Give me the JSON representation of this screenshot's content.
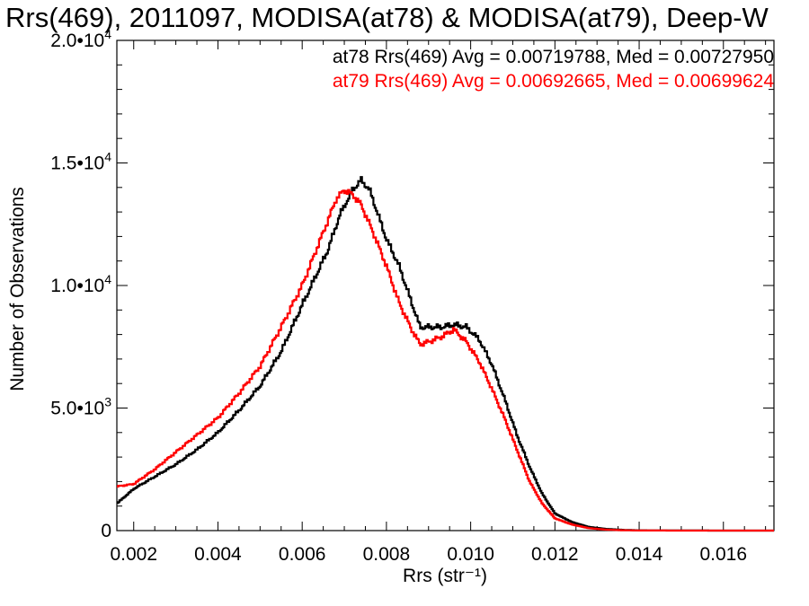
{
  "chart_data": {
    "type": "line",
    "title": "Rrs(469), 2011097, MODISA(at78) & MODISA(at79), Deep-W",
    "xlabel": "Rrs (str⁻¹)",
    "ylabel": "Number of Observations",
    "xlim": [
      0.0016,
      0.0172
    ],
    "ylim": [
      0,
      20000
    ],
    "x_ticks": [
      0.002,
      0.004,
      0.006,
      0.008,
      0.01,
      0.012,
      0.014,
      0.016
    ],
    "x_tick_labels": [
      "0.002",
      "0.004",
      "0.006",
      "0.008",
      "0.010",
      "0.012",
      "0.014",
      "0.016"
    ],
    "y_ticks": [
      0,
      5000,
      10000,
      15000,
      20000
    ],
    "y_tick_labels": [
      {
        "mantissa": "0",
        "exponent": ""
      },
      {
        "mantissa": "5.0•10",
        "exponent": "3"
      },
      {
        "mantissa": "1.0•10",
        "exponent": "4"
      },
      {
        "mantissa": "1.5•10",
        "exponent": "4"
      },
      {
        "mantissa": "2.0•10",
        "exponent": "4"
      }
    ],
    "grid": false,
    "legend_position": "top-right",
    "annotations": [
      {
        "text": "at78 Rrs(469) Avg = 0.00719788, Med = 0.00727950",
        "color": "#000000"
      },
      {
        "text": "at79 Rrs(469) Avg = 0.00692665, Med = 0.00699624",
        "color": "#ff0000"
      }
    ],
    "series": [
      {
        "color": "#000000",
        "x": [
          0.0016,
          0.002,
          0.0025,
          0.003,
          0.0035,
          0.004,
          0.0045,
          0.005,
          0.0055,
          0.006,
          0.0063,
          0.0066,
          0.0069,
          0.0072,
          0.0074,
          0.0076,
          0.0078,
          0.008,
          0.0083,
          0.0086,
          0.0088,
          0.009,
          0.0093,
          0.0096,
          0.0099,
          0.0102,
          0.0105,
          0.0108,
          0.0111,
          0.0114,
          0.0117,
          0.012,
          0.0124,
          0.0128,
          0.0132,
          0.0136,
          0.014,
          0.015,
          0.016,
          0.0172
        ],
        "y": [
          1100,
          1700,
          2200,
          2700,
          3300,
          4000,
          4900,
          5900,
          7300,
          9200,
          10300,
          11400,
          12900,
          13900,
          14300,
          13900,
          12900,
          11900,
          10800,
          9300,
          8300,
          8300,
          8300,
          8400,
          8300,
          7800,
          6800,
          5400,
          3900,
          2600,
          1500,
          700,
          350,
          150,
          70,
          30,
          10,
          5,
          0,
          0
        ]
      },
      {
        "color": "#ff0000",
        "x": [
          0.0016,
          0.002,
          0.0025,
          0.003,
          0.0035,
          0.004,
          0.0045,
          0.005,
          0.0055,
          0.006,
          0.0063,
          0.0066,
          0.0068,
          0.007,
          0.0072,
          0.0074,
          0.0077,
          0.008,
          0.0083,
          0.0086,
          0.0088,
          0.009,
          0.0093,
          0.0096,
          0.0099,
          0.0102,
          0.0105,
          0.0108,
          0.0111,
          0.0114,
          0.0117,
          0.012,
          0.0124,
          0.0128,
          0.0132,
          0.0136,
          0.014,
          0.015,
          0.016,
          0.0172
        ],
        "y": [
          1800,
          1900,
          2500,
          3200,
          3900,
          4600,
          5600,
          6700,
          8300,
          10000,
          11300,
          12600,
          13500,
          13900,
          13700,
          13300,
          12100,
          10800,
          9300,
          8200,
          7600,
          7700,
          7900,
          8200,
          7700,
          6900,
          5800,
          4600,
          3300,
          2000,
          1100,
          500,
          250,
          100,
          40,
          15,
          5,
          0,
          0,
          0
        ]
      }
    ]
  }
}
